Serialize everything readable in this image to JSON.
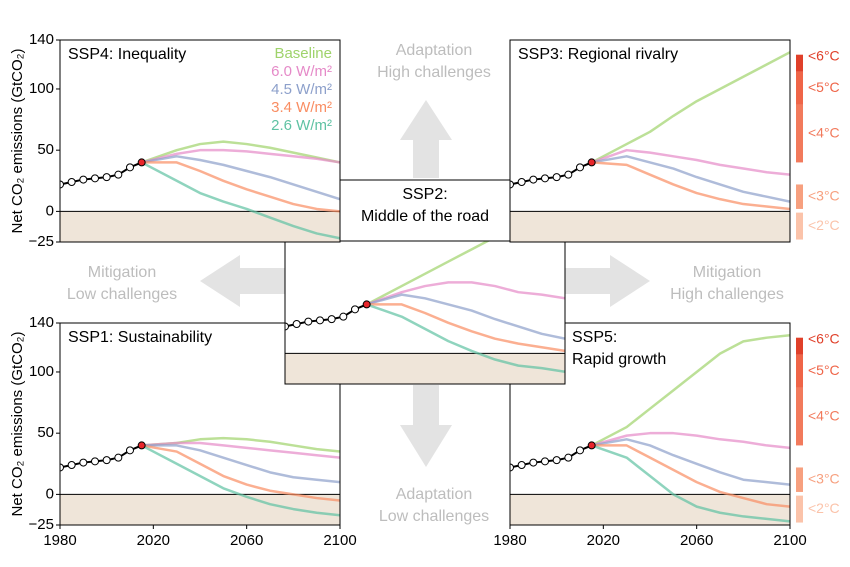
{
  "chart_data": [
    {
      "type": "line",
      "title": "SSP4: Inequality",
      "ylabel": "Net CO₂ emissions (GtCO₂)",
      "xlim": [
        1980,
        2100
      ],
      "ylim": [
        -25,
        140
      ],
      "yticks": [
        {
          "value": -25,
          "label": "−25"
        },
        0,
        50,
        100,
        140
      ],
      "legend": "upper right",
      "x": [
        2015,
        2030,
        2040,
        2050,
        2060,
        2070,
        2080,
        2090,
        2100
      ],
      "history": {
        "x": [
          1980,
          1985,
          1990,
          1995,
          2000,
          2005,
          2010,
          2015
        ],
        "values": [
          22,
          24,
          26,
          27,
          28,
          30,
          36,
          40
        ],
        "color": "#000000"
      },
      "series": [
        {
          "name": "Baseline",
          "color": "#9fd36b",
          "values": [
            40,
            50,
            55,
            57,
            55,
            52,
            48,
            44,
            40
          ]
        },
        {
          "name": "6.0 W/m²",
          "color": "#e58ac8",
          "values": [
            40,
            47,
            50,
            50,
            49,
            47,
            45,
            43,
            40
          ]
        },
        {
          "name": "4.5 W/m²",
          "color": "#8da0cb",
          "values": [
            40,
            45,
            42,
            38,
            33,
            28,
            22,
            16,
            10
          ]
        },
        {
          "name": "3.4 W/m²",
          "color": "#f98d62",
          "values": [
            40,
            40,
            33,
            25,
            18,
            12,
            6,
            2,
            0
          ]
        },
        {
          "name": "2.6 W/m²",
          "color": "#5fc2a3",
          "values": [
            40,
            25,
            15,
            8,
            2,
            -5,
            -12,
            -18,
            -22
          ]
        }
      ]
    },
    {
      "type": "line",
      "title": "SSP3: Regional rivalry",
      "xlim": [
        1980,
        2100
      ],
      "ylim": [
        -25,
        140
      ],
      "x": [
        2015,
        2030,
        2040,
        2050,
        2060,
        2070,
        2080,
        2090,
        2100
      ],
      "history": {
        "x": [
          1980,
          1985,
          1990,
          1995,
          2000,
          2005,
          2010,
          2015
        ],
        "values": [
          22,
          24,
          26,
          27,
          28,
          30,
          36,
          40
        ],
        "color": "#000000"
      },
      "series": [
        {
          "name": "Baseline",
          "color": "#9fd36b",
          "values": [
            40,
            55,
            65,
            78,
            90,
            100,
            110,
            120,
            130
          ]
        },
        {
          "name": "6.0 W/m²",
          "color": "#e58ac8",
          "values": [
            40,
            50,
            48,
            45,
            42,
            38,
            35,
            32,
            30
          ]
        },
        {
          "name": "4.5 W/m²",
          "color": "#8da0cb",
          "values": [
            40,
            45,
            40,
            35,
            28,
            22,
            16,
            12,
            8
          ]
        },
        {
          "name": "3.4 W/m²",
          "color": "#f98d62",
          "values": [
            40,
            38,
            30,
            22,
            15,
            10,
            6,
            4,
            2
          ]
        }
      ]
    },
    {
      "type": "line",
      "title": "SSP2:\nMiddle of the road",
      "xlim": [
        1980,
        2100
      ],
      "ylim": [
        -25,
        140
      ],
      "x": [
        2015,
        2030,
        2040,
        2050,
        2060,
        2070,
        2080,
        2090,
        2100
      ],
      "history": {
        "x": [
          1980,
          1985,
          1990,
          1995,
          2000,
          2005,
          2010,
          2015
        ],
        "values": [
          22,
          24,
          26,
          27,
          28,
          30,
          36,
          40
        ],
        "color": "#000000"
      },
      "series": [
        {
          "name": "Baseline",
          "color": "#9fd36b",
          "values": [
            40,
            55,
            65,
            75,
            85,
            95,
            105,
            112,
            118
          ]
        },
        {
          "name": "6.0 W/m²",
          "color": "#e58ac8",
          "values": [
            40,
            50,
            55,
            58,
            58,
            55,
            50,
            48,
            45
          ]
        },
        {
          "name": "4.5 W/m²",
          "color": "#8da0cb",
          "values": [
            40,
            48,
            45,
            40,
            35,
            28,
            22,
            16,
            12
          ]
        },
        {
          "name": "3.4 W/m²",
          "color": "#f98d62",
          "values": [
            40,
            40,
            33,
            25,
            18,
            12,
            8,
            5,
            2
          ]
        },
        {
          "name": "2.6 W/m²",
          "color": "#5fc2a3",
          "values": [
            40,
            30,
            20,
            10,
            2,
            -5,
            -10,
            -12,
            -15
          ]
        }
      ]
    },
    {
      "type": "line",
      "title": "SSP1: Sustainability",
      "ylabel": "Net CO₂ emissions (GtCO₂)",
      "xlim": [
        1980,
        2100
      ],
      "ylim": [
        -25,
        140
      ],
      "yticks": [
        {
          "value": -25,
          "label": "−25"
        },
        0,
        50,
        100,
        140
      ],
      "xticks": [
        1980,
        2020,
        2060,
        2100
      ],
      "x": [
        2015,
        2030,
        2040,
        2050,
        2060,
        2070,
        2080,
        2090,
        2100
      ],
      "history": {
        "x": [
          1980,
          1985,
          1990,
          1995,
          2000,
          2005,
          2010,
          2015
        ],
        "values": [
          22,
          24,
          26,
          27,
          28,
          30,
          36,
          40
        ],
        "color": "#000000"
      },
      "series": [
        {
          "name": "Baseline",
          "color": "#9fd36b",
          "values": [
            40,
            42,
            45,
            46,
            45,
            43,
            40,
            37,
            35
          ]
        },
        {
          "name": "6.0 W/m²",
          "color": "#e58ac8",
          "values": [
            40,
            42,
            42,
            40,
            38,
            36,
            34,
            32,
            30
          ]
        },
        {
          "name": "4.5 W/m²",
          "color": "#8da0cb",
          "values": [
            40,
            40,
            36,
            30,
            24,
            18,
            14,
            12,
            10
          ]
        },
        {
          "name": "3.4 W/m²",
          "color": "#f98d62",
          "values": [
            40,
            35,
            25,
            15,
            8,
            3,
            0,
            -3,
            -5
          ]
        },
        {
          "name": "2.6 W/m²",
          "color": "#5fc2a3",
          "values": [
            40,
            25,
            15,
            5,
            -2,
            -8,
            -12,
            -15,
            -17
          ]
        }
      ]
    },
    {
      "type": "line",
      "title": "SSP5:\nRapid growth",
      "xlim": [
        1980,
        2100
      ],
      "ylim": [
        -25,
        140
      ],
      "xticks": [
        1980,
        2020,
        2060,
        2100
      ],
      "x": [
        2015,
        2030,
        2040,
        2050,
        2060,
        2070,
        2080,
        2090,
        2100
      ],
      "history": {
        "x": [
          1980,
          1985,
          1990,
          1995,
          2000,
          2005,
          2010,
          2015
        ],
        "values": [
          22,
          24,
          26,
          27,
          28,
          30,
          36,
          40
        ],
        "color": "#000000"
      },
      "series": [
        {
          "name": "Baseline",
          "color": "#9fd36b",
          "values": [
            40,
            55,
            70,
            85,
            100,
            115,
            125,
            128,
            130
          ]
        },
        {
          "name": "6.0 W/m²",
          "color": "#e58ac8",
          "values": [
            40,
            48,
            50,
            50,
            48,
            45,
            43,
            40,
            38
          ]
        },
        {
          "name": "4.5 W/m²",
          "color": "#8da0cb",
          "values": [
            40,
            45,
            40,
            32,
            25,
            18,
            12,
            10,
            8
          ]
        },
        {
          "name": "3.4 W/m²",
          "color": "#f98d62",
          "values": [
            40,
            40,
            30,
            20,
            10,
            2,
            -3,
            -8,
            -10
          ]
        },
        {
          "name": "2.6 W/m²",
          "color": "#5fc2a3",
          "values": [
            40,
            30,
            15,
            0,
            -10,
            -15,
            -18,
            -20,
            -22
          ]
        }
      ]
    }
  ],
  "annotations": [
    "Adaptation\nHigh challenges",
    "Mitigation\nLow challenges",
    "Mitigation\nHigh challenges",
    "Adaptation\nLow challenges"
  ],
  "temperature_scales": [
    {
      "segments": [
        {
          "label": "<6°C",
          "range": [
            114,
            128
          ],
          "color": "#e0402a"
        },
        {
          "label": "<5°C",
          "range": [
            87,
            114
          ],
          "color": "#ef6548"
        },
        {
          "label": "<4°C",
          "range": [
            40,
            87
          ],
          "color": "#f27a5c"
        },
        {
          "label": "<3°C",
          "range": [
            2,
            22
          ],
          "color": "#f7a07f"
        },
        {
          "label": "<2°C",
          "range": [
            -23,
            -1
          ],
          "color": "#fbc3aa"
        }
      ]
    },
    {
      "segments": [
        {
          "label": "<6°C",
          "range": [
            114,
            128
          ],
          "color": "#e0402a"
        },
        {
          "label": "<5°C",
          "range": [
            87,
            114
          ],
          "color": "#ef6548"
        },
        {
          "label": "<4°C",
          "range": [
            40,
            87
          ],
          "color": "#f27a5c"
        },
        {
          "label": "<3°C",
          "range": [
            2,
            22
          ],
          "color": "#f7a07f"
        },
        {
          "label": "<2°C",
          "range": [
            -23,
            -1
          ],
          "color": "#fbc3aa"
        }
      ]
    }
  ]
}
